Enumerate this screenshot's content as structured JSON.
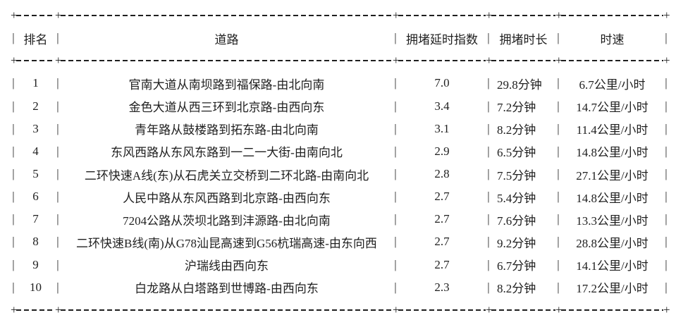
{
  "glyphs": {
    "pipe": "|",
    "plus": "+"
  },
  "table": {
    "headers": {
      "rank": "排名",
      "road": "道路",
      "index": "拥堵延时指数",
      "duration": "拥堵时长",
      "speed": "时速"
    },
    "rows": [
      {
        "rank": "1",
        "road": "官南大道从南坝路到福保路-由北向南",
        "index": "7.0",
        "duration": "29.8分钟",
        "speed": "6.7公里/小时"
      },
      {
        "rank": "2",
        "road": "金色大道从西三环到北京路-由西向东",
        "index": "3.4",
        "duration": "7.2分钟",
        "speed": "14.7公里/小时"
      },
      {
        "rank": "3",
        "road": "青年路从鼓楼路到拓东路-由北向南",
        "index": "3.1",
        "duration": "8.2分钟",
        "speed": "11.4公里/小时"
      },
      {
        "rank": "4",
        "road": "东风西路从东风东路到一二一大街-由南向北",
        "index": "2.9",
        "duration": "6.5分钟",
        "speed": "14.8公里/小时"
      },
      {
        "rank": "5",
        "road": "二环快速A线(东)从石虎关立交桥到二环北路-由南向北",
        "index": "2.8",
        "duration": "7.5分钟",
        "speed": "27.1公里/小时"
      },
      {
        "rank": "6",
        "road": "人民中路从东风西路到北京路-由西向东",
        "index": "2.7",
        "duration": "5.4分钟",
        "speed": "14.8公里/小时"
      },
      {
        "rank": "7",
        "road": "7204公路从茨坝北路到沣源路-由北向南",
        "index": "2.7",
        "duration": "7.6分钟",
        "speed": "13.3公里/小时"
      },
      {
        "rank": "8",
        "road": "二环快速B线(南)从G78汕昆高速到G56杭瑞高速-由东向西",
        "index": "2.7",
        "duration": "9.2分钟",
        "speed": "28.8公里/小时"
      },
      {
        "rank": "9",
        "road": "沪瑞线由西向东",
        "index": "2.7",
        "duration": "6.7分钟",
        "speed": "14.1公里/小时"
      },
      {
        "rank": "10",
        "road": "白龙路从白塔路到世博路-由西向东",
        "index": "2.3",
        "duration": "8.2分钟",
        "speed": "17.2公里/小时"
      }
    ]
  }
}
